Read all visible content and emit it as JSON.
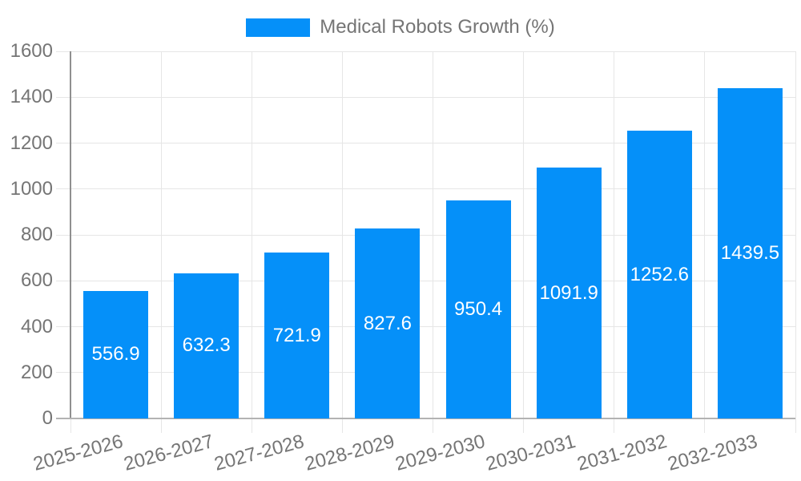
{
  "chart_data": {
    "type": "bar",
    "title": "Medical Robots Growth (%)",
    "legend": {
      "label": "Medical Robots Growth (%)",
      "position": "top-center"
    },
    "categories": [
      "2025-2026",
      "2026-2027",
      "2027-2028",
      "2028-2029",
      "2029-2030",
      "2030-2031",
      "2031-2032",
      "2032-2033"
    ],
    "series": [
      {
        "name": "Medical Robots Growth (%)",
        "values": [
          556.9,
          632.3,
          721.9,
          827.6,
          950.4,
          1091.9,
          1252.6,
          1439.5
        ]
      }
    ],
    "xlabel": "",
    "ylabel": "",
    "ylim": [
      0,
      1600
    ],
    "yticks": [
      0,
      200,
      400,
      600,
      800,
      1000,
      1200,
      1400,
      1600
    ],
    "grid": true,
    "value_label_position": "inside-center",
    "x_label_rotation_deg": -15,
    "colors": {
      "bar": "#0590f9",
      "bar_label": "#ffffff",
      "axis_text": "#757575",
      "legend_text": "#757575",
      "grid": "#e6e6e6",
      "y_axis_line": "#8f8f8f",
      "x_axis_line": "#b3b3b3",
      "background": "#ffffff"
    }
  }
}
